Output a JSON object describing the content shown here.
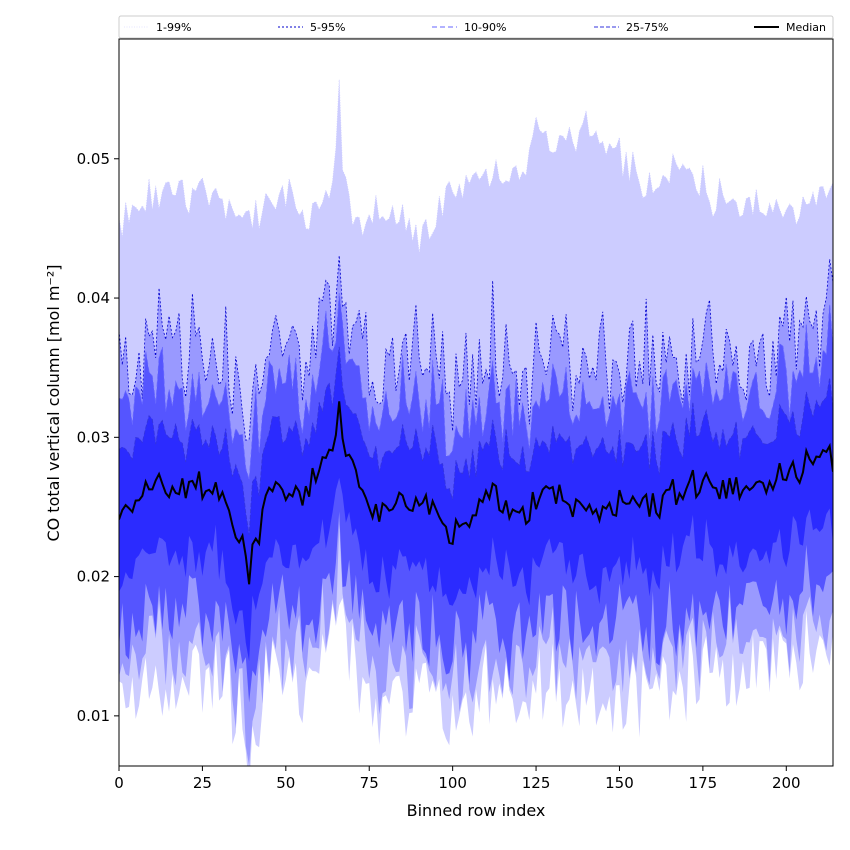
{
  "chart_data": {
    "type": "area",
    "xlabel": "Binned row index",
    "ylabel": "CO total vertical column [mol m⁻²]",
    "xlim": [
      0,
      214
    ],
    "ylim": [
      0.0064,
      0.0586
    ],
    "xticks": [
      "0",
      "25",
      "50",
      "75",
      "100",
      "125",
      "150",
      "175",
      "200"
    ],
    "yticks": [
      "0.01",
      "0.02",
      "0.03",
      "0.04",
      "0.05"
    ],
    "legend_position": "top, spanning full width",
    "grid": false,
    "bands": [
      {
        "name": "1-99%",
        "color": "#ccccff",
        "line_color": "#ccccff",
        "lower_mean": 0.0125,
        "upper_mean": 0.0475
      },
      {
        "name": "5-95%",
        "color": "#9999ff",
        "line_color": "#0000cc",
        "lower_mean": 0.0142,
        "upper_mean": 0.039
      },
      {
        "name": "10-90%",
        "color": "#5555ff",
        "line_color": "#6666ff",
        "lower_mean": 0.017,
        "upper_mean": 0.0352
      },
      {
        "name": "25-75%",
        "color": "#2b2bff",
        "line_color": "#3333dd",
        "lower_mean": 0.0212,
        "upper_mean": 0.0312
      }
    ],
    "median": {
      "name": "Median",
      "color": "#000000",
      "anchors_x": [
        0,
        10,
        20,
        30,
        39,
        45,
        55,
        66,
        75,
        90,
        100,
        110,
        120,
        130,
        140,
        150,
        160,
        170,
        180,
        190,
        200,
        214
      ],
      "anchors_y": [
        0.024,
        0.027,
        0.0262,
        0.0265,
        0.021,
        0.0265,
        0.0258,
        0.03,
        0.0245,
        0.0255,
        0.023,
        0.026,
        0.0245,
        0.026,
        0.0245,
        0.0252,
        0.025,
        0.0265,
        0.0262,
        0.0268,
        0.0275,
        0.029
      ]
    },
    "upper_envelope": {
      "anchors_x": [
        0,
        10,
        20,
        30,
        40,
        50,
        60,
        66,
        70,
        80,
        90,
        100,
        110,
        120,
        125,
        130,
        140,
        150,
        160,
        170,
        180,
        190,
        200,
        214
      ],
      "anchors_y": [
        0.0455,
        0.048,
        0.0475,
        0.047,
        0.046,
        0.047,
        0.0455,
        0.05,
        0.045,
        0.046,
        0.0445,
        0.047,
        0.0495,
        0.048,
        0.053,
        0.051,
        0.052,
        0.05,
        0.048,
        0.049,
        0.047,
        0.0465,
        0.046,
        0.048
      ]
    }
  }
}
